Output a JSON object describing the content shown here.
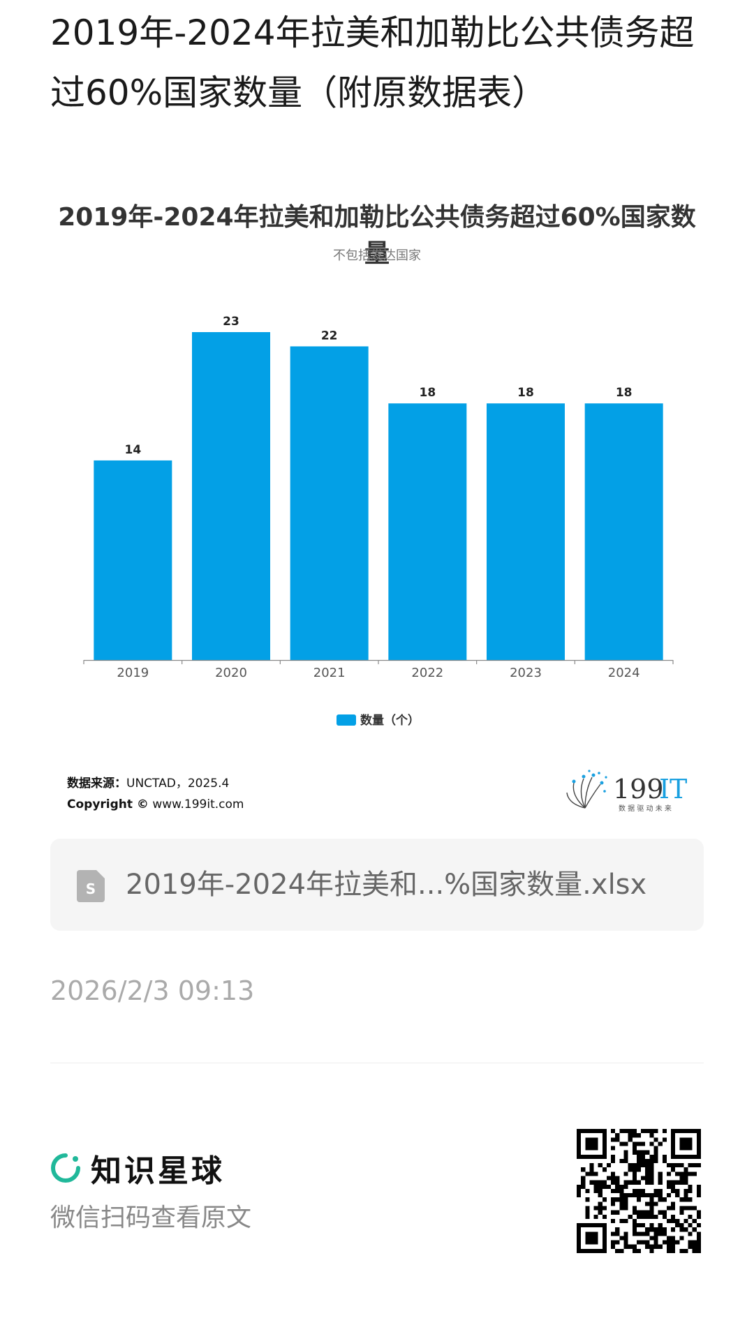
{
  "page": {
    "title": "2019年-2024年拉美和加勒比公共债务超过60%国家数量（附原数据表）"
  },
  "chart_data": {
    "type": "bar",
    "title": "2019年-2024年拉美和加勒比公共债务超过60%国家数量",
    "subtitle": "不包括发达国家",
    "categories": [
      "2019",
      "2020",
      "2021",
      "2022",
      "2023",
      "2024"
    ],
    "series": [
      {
        "name": "数量（个）",
        "values": [
          14,
          23,
          22,
          18,
          18,
          18
        ],
        "color": "#03a0e6"
      }
    ],
    "ylim": [
      0,
      23
    ],
    "grid": false,
    "legend_position": "bottom-center",
    "data_labels": true
  },
  "source": {
    "label": "数据来源：",
    "value": "UNCTAD，2025.4",
    "copyright_label": "Copyright ©",
    "copyright_value": " www.199it.com"
  },
  "brand": {
    "name_digits": "199",
    "name_it": "IT",
    "tagline": "数 据 驱 动 未 来",
    "color": "#1aa0e0"
  },
  "attachment": {
    "file_name": "2019年-2024年拉美和...%国家数量.xlsx",
    "icon": "spreadsheet-icon"
  },
  "timestamp": "2026/2/3 09:13",
  "footer": {
    "app_name": "知识星球",
    "scan_hint": "微信扫码查看原文",
    "logo_color": "#20b89a"
  }
}
